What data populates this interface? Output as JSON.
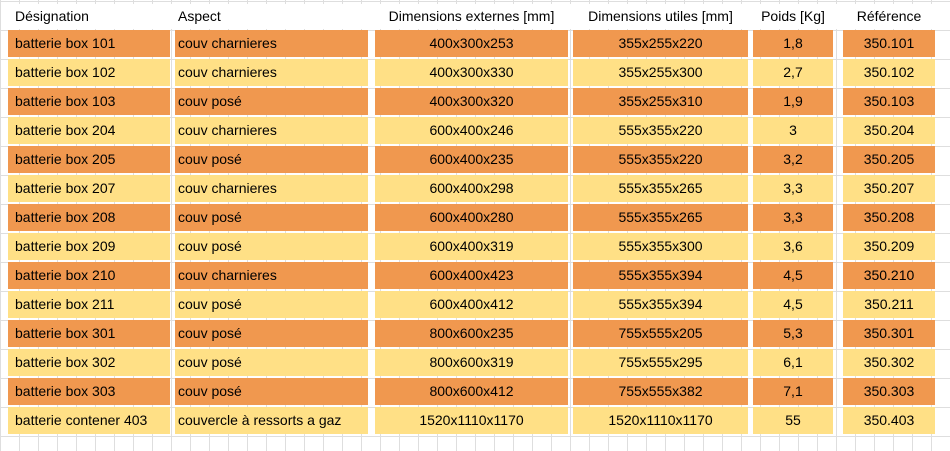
{
  "colors": {
    "row_orange": "#F0984F",
    "row_yellow": "#FFE086",
    "grid_line": "#D9D9D9",
    "text": "#000000",
    "header_bg": "#FFFFFF"
  },
  "table": {
    "columns": [
      {
        "key": "designation",
        "label": "Désignation",
        "align": "left"
      },
      {
        "key": "aspect",
        "label": "Aspect",
        "align": "left"
      },
      {
        "key": "dimensions-externes",
        "label": "Dimensions externes [mm]",
        "align": "center"
      },
      {
        "key": "dimensions-utiles",
        "label": "Dimensions utiles [mm]",
        "align": "center"
      },
      {
        "key": "poids",
        "label": "Poids [Kg]",
        "align": "center"
      },
      {
        "key": "reference",
        "label": "Référence",
        "align": "center"
      }
    ],
    "rows": [
      [
        "batterie box 101",
        "couv charnieres",
        "400x300x253",
        "355x255x220",
        "1,8",
        "350.101"
      ],
      [
        "batterie box 102",
        "couv charnieres",
        "400x300x330",
        "355x255x300",
        "2,7",
        "350.102"
      ],
      [
        "batterie box 103",
        "couv posé",
        "400x300x320",
        "355x255x310",
        "1,9",
        "350.103"
      ],
      [
        "batterie box 204",
        "couv charnieres",
        "600x400x246",
        "555x355x220",
        "3",
        "350.204"
      ],
      [
        "batterie box 205",
        "couv posé",
        "600x400x235",
        "555x355x220",
        "3,2",
        "350.205"
      ],
      [
        "batterie box 207",
        "couv charnieres",
        "600x400x298",
        "555x355x265",
        "3,3",
        "350.207"
      ],
      [
        "batterie box 208",
        "couv posé",
        "600x400x280",
        "555x355x265",
        "3,3",
        "350.208"
      ],
      [
        "batterie box 209",
        "couv posé",
        "600x400x319",
        "555x355x300",
        "3,6",
        "350.209"
      ],
      [
        "batterie box 210",
        "couv charnieres",
        "600x400x423",
        "555x355x394",
        "4,5",
        "350.210"
      ],
      [
        "batterie box 211",
        "couv posé",
        "600x400x412",
        "555x355x394",
        "4,5",
        "350.211"
      ],
      [
        "batterie box 301",
        "couv posé",
        "800x600x235",
        "755x555x205",
        "5,3",
        "350.301"
      ],
      [
        "batterie box 302",
        "couv posé",
        "800x600x319",
        "755x555x295",
        "6,1",
        "350.302"
      ],
      [
        "batterie box 303",
        "couv posé",
        "800x600x412",
        "755x555x382",
        "7,1",
        "350.303"
      ],
      [
        "batterie contener 403",
        "couvercle à ressorts a gaz",
        "1520x1110x1170",
        "1520x1110x1170",
        "55",
        "350.403"
      ]
    ]
  }
}
